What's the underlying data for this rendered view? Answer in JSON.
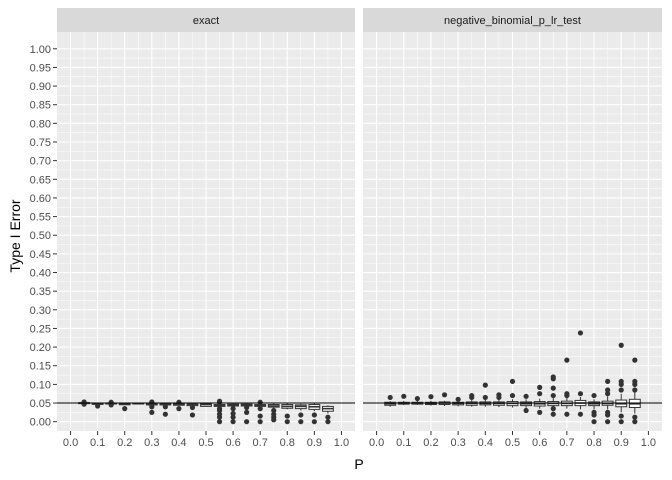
{
  "chart_data": {
    "type": "boxplot",
    "xlabel": "P",
    "ylabel": "Type I Error",
    "x_ticks": [
      "0.0",
      "0.1",
      "0.2",
      "0.3",
      "0.4",
      "0.5",
      "0.6",
      "0.7",
      "0.8",
      "0.9",
      "1.0"
    ],
    "y_ticks": [
      "0.00",
      "0.05",
      "0.10",
      "0.15",
      "0.20",
      "0.25",
      "0.30",
      "0.35",
      "0.40",
      "0.45",
      "0.50",
      "0.55",
      "0.60",
      "0.65",
      "0.70",
      "0.75",
      "0.80",
      "0.85",
      "0.90",
      "0.95",
      "1.00"
    ],
    "xlim": [
      -0.05,
      1.05
    ],
    "ylim": [
      -0.025,
      1.045
    ],
    "reference_line": 0.05,
    "panel_background": "#ebebeb",
    "strip_background": "#d9d9d9",
    "panels": [
      {
        "strip_label": "exact",
        "boxes": [
          {
            "x": 0.05,
            "q1": 0.049,
            "median": 0.05,
            "q3": 0.051,
            "lo": 0.048,
            "hi": 0.052,
            "outliers": [
              0.053,
              0.047
            ]
          },
          {
            "x": 0.1,
            "q1": 0.047,
            "median": 0.048,
            "q3": 0.049,
            "lo": 0.046,
            "hi": 0.05,
            "outliers": [
              0.042
            ]
          },
          {
            "x": 0.15,
            "q1": 0.048,
            "median": 0.049,
            "q3": 0.05,
            "lo": 0.047,
            "hi": 0.051,
            "outliers": [
              0.045,
              0.052
            ]
          },
          {
            "x": 0.2,
            "q1": 0.046,
            "median": 0.047,
            "q3": 0.048,
            "lo": 0.046,
            "hi": 0.049,
            "outliers": [
              0.035
            ]
          },
          {
            "x": 0.25,
            "q1": 0.048,
            "median": 0.049,
            "q3": 0.05,
            "lo": 0.047,
            "hi": 0.05,
            "outliers": []
          },
          {
            "x": 0.3,
            "q1": 0.045,
            "median": 0.046,
            "q3": 0.048,
            "lo": 0.044,
            "hi": 0.049,
            "outliers": [
              0.025,
              0.04,
              0.053
            ]
          },
          {
            "x": 0.35,
            "q1": 0.045,
            "median": 0.046,
            "q3": 0.048,
            "lo": 0.044,
            "hi": 0.049,
            "outliers": [
              0.02,
              0.04
            ]
          },
          {
            "x": 0.4,
            "q1": 0.044,
            "median": 0.046,
            "q3": 0.048,
            "lo": 0.043,
            "hi": 0.05,
            "outliers": [
              0.035,
              0.052
            ]
          },
          {
            "x": 0.45,
            "q1": 0.043,
            "median": 0.046,
            "q3": 0.047,
            "lo": 0.042,
            "hi": 0.048,
            "outliers": [
              0.018,
              0.038
            ]
          },
          {
            "x": 0.5,
            "q1": 0.041,
            "median": 0.046,
            "q3": 0.048,
            "lo": 0.04,
            "hi": 0.049,
            "outliers": []
          },
          {
            "x": 0.55,
            "q1": 0.041,
            "median": 0.044,
            "q3": 0.046,
            "lo": 0.04,
            "hi": 0.049,
            "outliers": [
              0,
              0.012,
              0.02,
              0.03,
              0.035,
              0.052,
              0.055
            ]
          },
          {
            "x": 0.6,
            "q1": 0.042,
            "median": 0.045,
            "q3": 0.047,
            "lo": 0.04,
            "hi": 0.048,
            "outliers": [
              0,
              0.012,
              0.022,
              0.035
            ]
          },
          {
            "x": 0.65,
            "q1": 0.042,
            "median": 0.045,
            "q3": 0.047,
            "lo": 0.04,
            "hi": 0.048,
            "outliers": [
              0,
              0.025,
              0.038
            ]
          },
          {
            "x": 0.7,
            "q1": 0.041,
            "median": 0.044,
            "q3": 0.046,
            "lo": 0.04,
            "hi": 0.049,
            "outliers": [
              0,
              0.015,
              0.035,
              0.052
            ]
          },
          {
            "x": 0.75,
            "q1": 0.039,
            "median": 0.042,
            "q3": 0.046,
            "lo": 0.037,
            "hi": 0.049,
            "outliers": [
              0.005,
              0.012,
              0.02,
              0.03
            ]
          },
          {
            "x": 0.8,
            "q1": 0.036,
            "median": 0.041,
            "q3": 0.046,
            "lo": 0.033,
            "hi": 0.05,
            "outliers": [
              0,
              0.015
            ]
          },
          {
            "x": 0.85,
            "q1": 0.035,
            "median": 0.041,
            "q3": 0.045,
            "lo": 0.03,
            "hi": 0.048,
            "outliers": [
              0,
              0.018
            ]
          },
          {
            "x": 0.9,
            "q1": 0.033,
            "median": 0.04,
            "q3": 0.046,
            "lo": 0.028,
            "hi": 0.049,
            "outliers": [
              0,
              0.018
            ]
          },
          {
            "x": 0.95,
            "q1": 0.028,
            "median": 0.035,
            "q3": 0.041,
            "lo": 0.022,
            "hi": 0.044,
            "outliers": [
              0,
              0.012
            ]
          }
        ]
      },
      {
        "strip_label": "negative_binomial_p_lr_test",
        "boxes": [
          {
            "x": 0.05,
            "q1": 0.044,
            "median": 0.048,
            "q3": 0.052,
            "lo": 0.04,
            "hi": 0.055,
            "outliers": [
              0.065
            ]
          },
          {
            "x": 0.1,
            "q1": 0.047,
            "median": 0.049,
            "q3": 0.052,
            "lo": 0.044,
            "hi": 0.056,
            "outliers": [
              0.068
            ]
          },
          {
            "x": 0.15,
            "q1": 0.047,
            "median": 0.05,
            "q3": 0.052,
            "lo": 0.045,
            "hi": 0.056,
            "outliers": [
              0.062
            ]
          },
          {
            "x": 0.2,
            "q1": 0.046,
            "median": 0.049,
            "q3": 0.052,
            "lo": 0.043,
            "hi": 0.056,
            "outliers": [
              0.067
            ]
          },
          {
            "x": 0.25,
            "q1": 0.046,
            "median": 0.05,
            "q3": 0.053,
            "lo": 0.042,
            "hi": 0.056,
            "outliers": [
              0.072
            ]
          },
          {
            "x": 0.3,
            "q1": 0.045,
            "median": 0.049,
            "q3": 0.052,
            "lo": 0.041,
            "hi": 0.055,
            "outliers": [
              0.06
            ]
          },
          {
            "x": 0.35,
            "q1": 0.044,
            "median": 0.049,
            "q3": 0.053,
            "lo": 0.04,
            "hi": 0.058,
            "outliers": [
              0.065,
              0.07
            ]
          },
          {
            "x": 0.4,
            "q1": 0.045,
            "median": 0.049,
            "q3": 0.053,
            "lo": 0.04,
            "hi": 0.058,
            "outliers": [
              0.065,
              0.098
            ]
          },
          {
            "x": 0.45,
            "q1": 0.044,
            "median": 0.049,
            "q3": 0.053,
            "lo": 0.039,
            "hi": 0.058,
            "outliers": [
              0.065,
              0.072
            ]
          },
          {
            "x": 0.5,
            "q1": 0.043,
            "median": 0.049,
            "q3": 0.054,
            "lo": 0.038,
            "hi": 0.06,
            "outliers": [
              0.07,
              0.108
            ]
          },
          {
            "x": 0.55,
            "q1": 0.043,
            "median": 0.048,
            "q3": 0.053,
            "lo": 0.037,
            "hi": 0.06,
            "outliers": [
              0.03,
              0.068
            ]
          },
          {
            "x": 0.6,
            "q1": 0.042,
            "median": 0.048,
            "q3": 0.054,
            "lo": 0.035,
            "hi": 0.062,
            "outliers": [
              0.025,
              0.075,
              0.092
            ]
          },
          {
            "x": 0.65,
            "q1": 0.043,
            "median": 0.049,
            "q3": 0.054,
            "lo": 0.034,
            "hi": 0.063,
            "outliers": [
              0.02,
              0.035,
              0.07,
              0.09,
              0.115,
              0.12
            ]
          },
          {
            "x": 0.7,
            "q1": 0.043,
            "median": 0.049,
            "q3": 0.055,
            "lo": 0.035,
            "hi": 0.064,
            "outliers": [
              0.02,
              0.07,
              0.075,
              0.165
            ]
          },
          {
            "x": 0.75,
            "q1": 0.043,
            "median": 0.05,
            "q3": 0.057,
            "lo": 0.033,
            "hi": 0.066,
            "outliers": [
              0.02,
              0.075,
              0.238
            ]
          },
          {
            "x": 0.8,
            "q1": 0.043,
            "median": 0.048,
            "q3": 0.053,
            "lo": 0.033,
            "hi": 0.06,
            "outliers": [
              0,
              0.018,
              0.025,
              0.07
            ]
          },
          {
            "x": 0.85,
            "q1": 0.044,
            "median": 0.049,
            "q3": 0.055,
            "lo": 0.033,
            "hi": 0.068,
            "outliers": [
              0,
              0.018,
              0.025,
              0.075,
              0.085,
              0.108
            ]
          },
          {
            "x": 0.9,
            "q1": 0.04,
            "median": 0.048,
            "q3": 0.058,
            "lo": 0.025,
            "hi": 0.075,
            "outliers": [
              0,
              0.015,
              0.085,
              0.1,
              0.108,
              0.205
            ]
          },
          {
            "x": 0.95,
            "q1": 0.038,
            "median": 0.048,
            "q3": 0.06,
            "lo": 0.022,
            "hi": 0.08,
            "outliers": [
              0,
              0.012,
              0.085,
              0.1,
              0.108,
              0.165
            ]
          }
        ]
      }
    ]
  }
}
